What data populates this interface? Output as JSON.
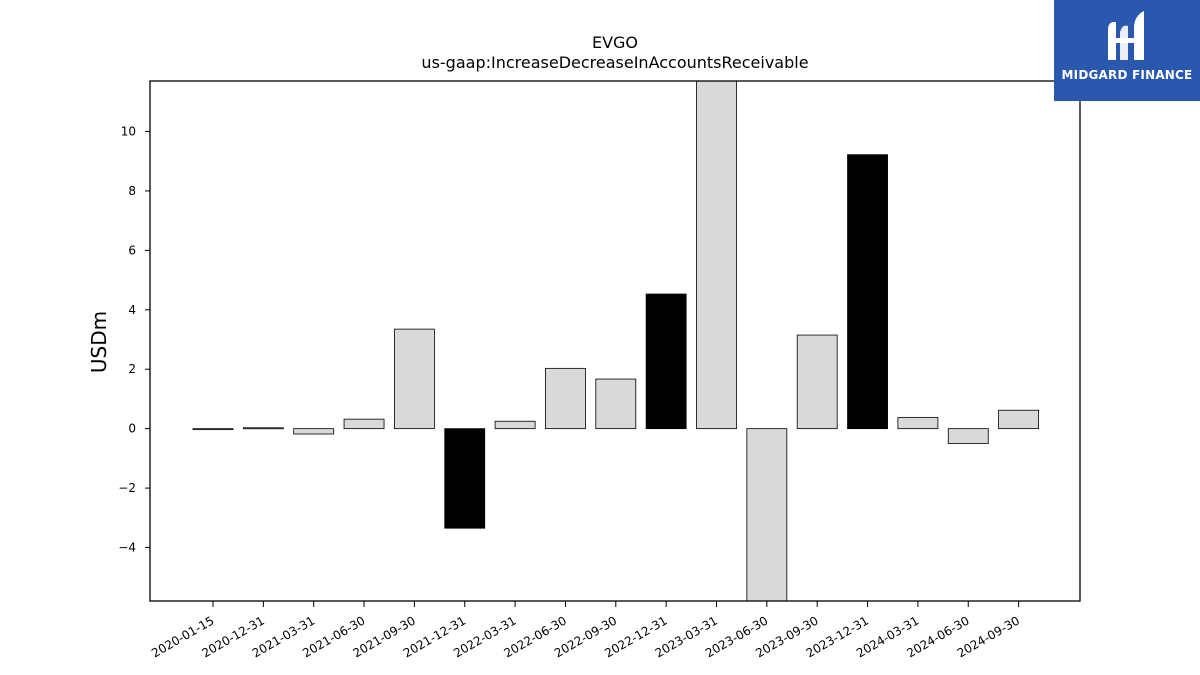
{
  "brand": {
    "name": "MIDGARD FINANCE",
    "background": "#2a58ae",
    "icon": "midgard-logo-icon"
  },
  "chart_data": {
    "type": "bar",
    "title": "EVGO",
    "subtitle": "us-gaap:IncreaseDecreaseInAccountsReceivable",
    "xlabel": "",
    "ylabel": "USDm",
    "ylim": [
      -5.8,
      11.7
    ],
    "yticks": [
      -4,
      -2,
      0,
      2,
      4,
      6,
      8,
      10
    ],
    "ytick_labels": [
      "−4",
      "−2",
      "0",
      "2",
      "4",
      "6",
      "8",
      "10"
    ],
    "grid": false,
    "legend": "none",
    "colors": {
      "highlight": "#000000",
      "normal": "#d9d9d9",
      "edge": "#000000"
    },
    "categories": [
      "2020-01-15",
      "2020-12-31",
      "2021-03-31",
      "2021-06-30",
      "2021-09-30",
      "2021-12-31",
      "2022-03-31",
      "2022-06-30",
      "2022-09-30",
      "2022-12-31",
      "2023-03-31",
      "2023-06-30",
      "2023-09-30",
      "2023-12-31",
      "2024-03-31",
      "2024-06-30",
      "2024-09-30"
    ],
    "values": [
      -0.03,
      0.03,
      -0.18,
      0.32,
      3.35,
      -3.35,
      0.25,
      2.03,
      1.67,
      4.53,
      11.75,
      -5.8,
      3.15,
      9.22,
      0.38,
      -0.5,
      0.62
    ],
    "highlight": [
      false,
      false,
      false,
      false,
      false,
      true,
      false,
      false,
      false,
      true,
      false,
      false,
      false,
      true,
      false,
      false,
      false
    ]
  }
}
